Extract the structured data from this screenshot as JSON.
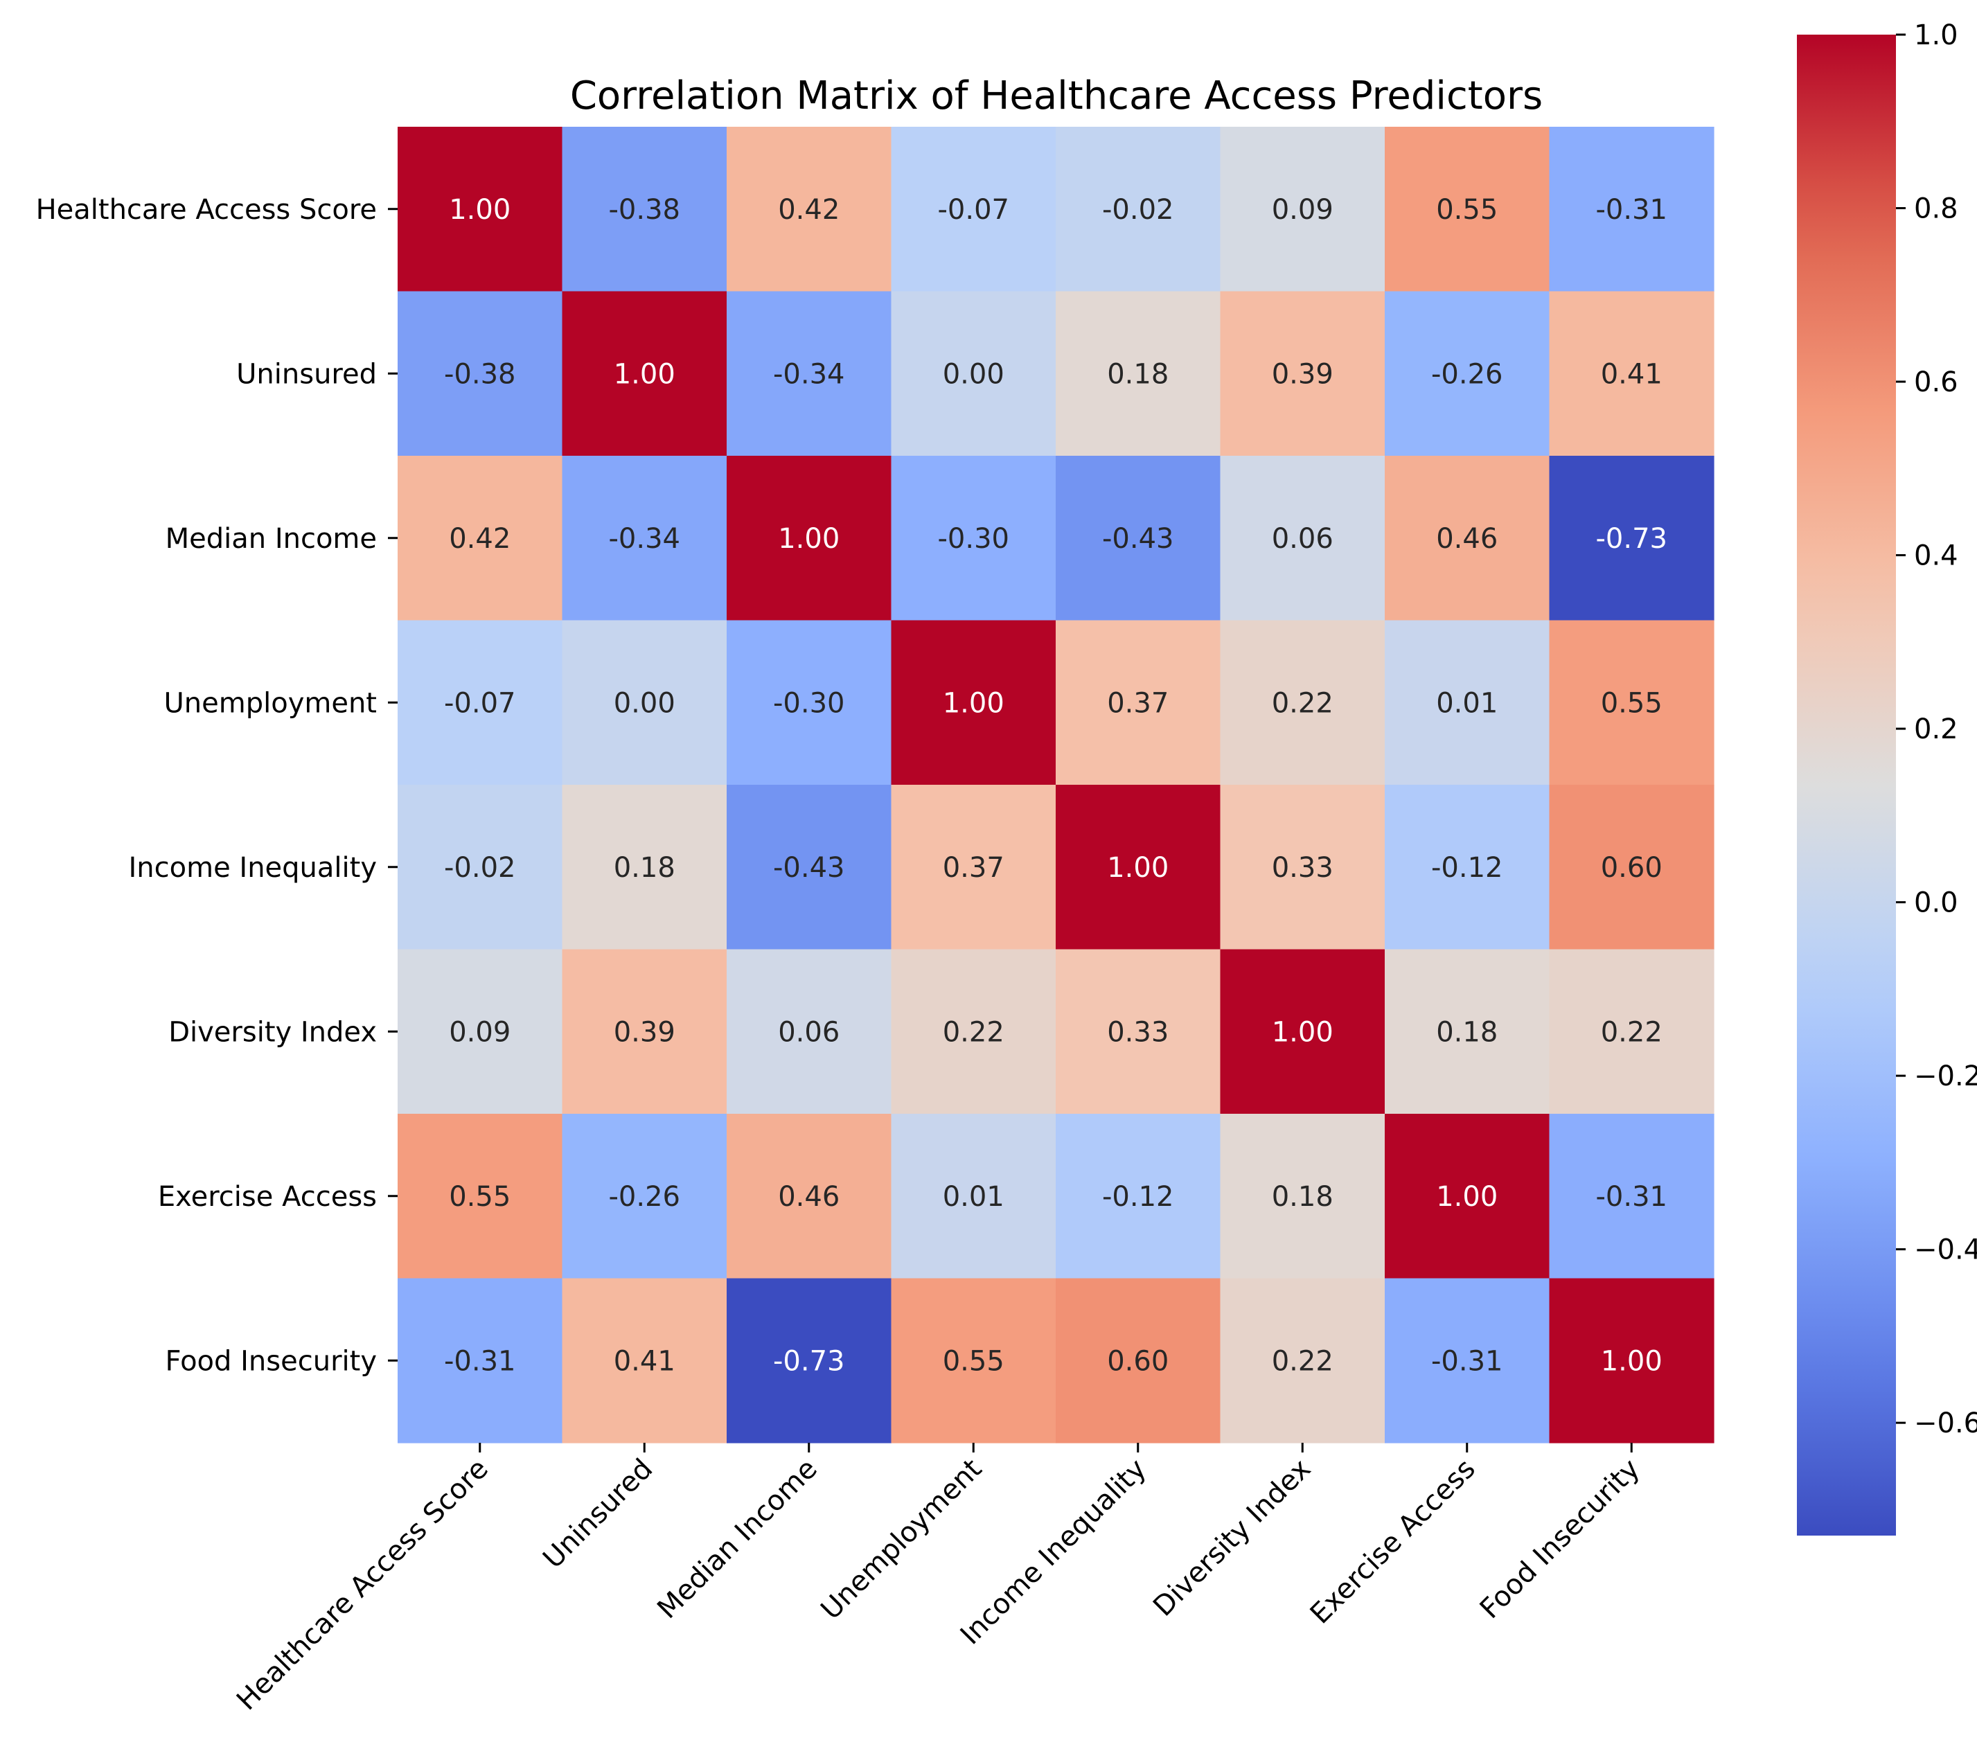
{
  "chart_data": {
    "type": "heatmap",
    "title": "Correlation Matrix of Healthcare Access Predictors",
    "xlabel": "",
    "ylabel": "",
    "labels": [
      "Healthcare Access Score",
      "Uninsured",
      "Median Income",
      "Unemployment",
      "Income Inequality",
      "Diversity Index",
      "Exercise Access",
      "Food Insecurity"
    ],
    "values": [
      [
        1.0,
        -0.38,
        0.42,
        -0.07,
        -0.02,
        0.09,
        0.55,
        -0.31
      ],
      [
        -0.38,
        1.0,
        -0.34,
        0.0,
        0.18,
        0.39,
        -0.26,
        0.41
      ],
      [
        0.42,
        -0.34,
        1.0,
        -0.3,
        -0.43,
        0.06,
        0.46,
        -0.73
      ],
      [
        -0.07,
        0.0,
        -0.3,
        1.0,
        0.37,
        0.22,
        0.01,
        0.55
      ],
      [
        -0.02,
        0.18,
        -0.43,
        0.37,
        1.0,
        0.33,
        -0.12,
        0.6
      ],
      [
        0.09,
        0.39,
        0.06,
        0.22,
        0.33,
        1.0,
        0.18,
        0.22
      ],
      [
        0.55,
        -0.26,
        0.46,
        0.01,
        -0.12,
        0.18,
        1.0,
        -0.31
      ],
      [
        -0.31,
        0.41,
        -0.73,
        0.55,
        0.6,
        0.22,
        -0.31,
        1.0
      ]
    ],
    "annotation_format": "0.00",
    "colormap": "coolwarm",
    "vmin": -0.73,
    "vmax": 1.0,
    "colorbar": {
      "ticks": [
        -0.6,
        -0.4,
        -0.2,
        0.0,
        0.2,
        0.4,
        0.6,
        0.8,
        1.0
      ],
      "tick_labels": [
        "−0.6",
        "−0.4",
        "−0.2",
        "0.0",
        "0.2",
        "0.4",
        "0.6",
        "0.8",
        "1.0"
      ]
    },
    "grid": false,
    "legend": "colorbar-right"
  }
}
